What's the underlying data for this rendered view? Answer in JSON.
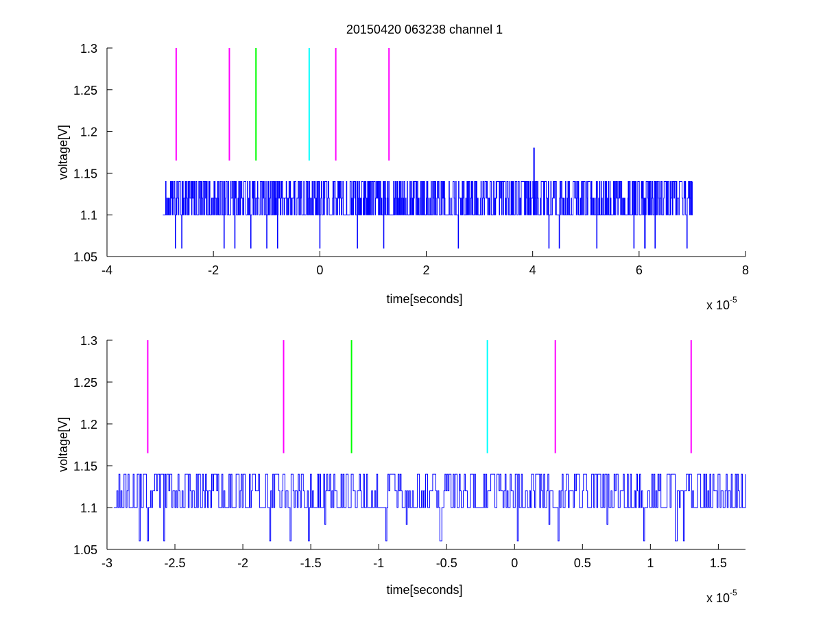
{
  "figure": {
    "title": "20150420 063238 channel 1"
  },
  "chart_data": [
    {
      "type": "line",
      "title": "20150420 063238 channel 1",
      "xlabel": "time[seconds]",
      "ylabel": "voltage[V]",
      "x_multiplier": "x 10",
      "x_exponent": "-5",
      "xlim": [
        -4,
        8
      ],
      "ylim": [
        1.05,
        1.3
      ],
      "xticks": [
        -4,
        -2,
        0,
        2,
        4,
        6,
        8
      ],
      "xtick_labels": [
        "-4",
        "-2",
        "0",
        "2",
        "4",
        "6",
        "8"
      ],
      "yticks": [
        1.05,
        1.1,
        1.15,
        1.2,
        1.25,
        1.3
      ],
      "ytick_labels": [
        "1.05",
        "1.1",
        "1.15",
        "1.2",
        "1.25",
        "1.3"
      ],
      "grid": false,
      "markers": [
        {
          "x": -2.7,
          "y_range": [
            1.165,
            1.3
          ],
          "color": "#ff00ff"
        },
        {
          "x": -1.7,
          "y_range": [
            1.165,
            1.3
          ],
          "color": "#ff00ff"
        },
        {
          "x": -1.2,
          "y_range": [
            1.165,
            1.3
          ],
          "color": "#00ff00"
        },
        {
          "x": -0.2,
          "y_range": [
            1.165,
            1.3
          ],
          "color": "#00ffff"
        },
        {
          "x": 0.3,
          "y_range": [
            1.165,
            1.3
          ],
          "color": "#ff00ff"
        },
        {
          "x": 1.3,
          "y_range": [
            1.165,
            1.3
          ],
          "color": "#ff00ff"
        }
      ],
      "signal": {
        "color": "#0000ff",
        "x_range": [
          -2.95,
          7.0
        ],
        "levels": [
          1.06,
          1.08,
          1.1,
          1.12,
          1.14
        ],
        "spike": {
          "x": 4.02,
          "y": 1.18
        },
        "dips": [
          {
            "x": -2.72,
            "y": 1.06
          },
          {
            "x": -2.6,
            "y": 1.06
          },
          {
            "x": -1.8,
            "y": 1.06
          },
          {
            "x": -1.6,
            "y": 1.06
          },
          {
            "x": -1.3,
            "y": 1.06
          },
          {
            "x": -1.0,
            "y": 1.06
          },
          {
            "x": -0.8,
            "y": 1.06
          },
          {
            "x": 0.0,
            "y": 1.06
          },
          {
            "x": 0.7,
            "y": 1.06
          },
          {
            "x": 1.2,
            "y": 1.06
          },
          {
            "x": 2.6,
            "y": 1.06
          },
          {
            "x": 4.3,
            "y": 1.06
          },
          {
            "x": 4.5,
            "y": 1.06
          },
          {
            "x": 5.2,
            "y": 1.06
          },
          {
            "x": 5.9,
            "y": 1.06
          },
          {
            "x": 6.1,
            "y": 1.06
          },
          {
            "x": 6.3,
            "y": 1.06
          },
          {
            "x": 6.9,
            "y": 1.06
          }
        ]
      }
    },
    {
      "type": "line",
      "title": "",
      "xlabel": "time[seconds]",
      "ylabel": "voltage[V]",
      "x_multiplier": "x 10",
      "x_exponent": "-5",
      "xlim": [
        -3.0,
        1.7
      ],
      "ylim": [
        1.05,
        1.3
      ],
      "xticks": [
        -3,
        -2.5,
        -2,
        -1.5,
        -1,
        -0.5,
        0,
        0.5,
        1,
        1.5
      ],
      "xtick_labels": [
        "-3",
        "-2.5",
        "-2",
        "-1.5",
        "-1",
        "-0.5",
        "0",
        "0.5",
        "1",
        "1.5"
      ],
      "yticks": [
        1.05,
        1.1,
        1.15,
        1.2,
        1.25,
        1.3
      ],
      "ytick_labels": [
        "1.05",
        "1.1",
        "1.15",
        "1.2",
        "1.25",
        "1.3"
      ],
      "grid": false,
      "markers": [
        {
          "x": -2.7,
          "y_range": [
            1.165,
            1.3
          ],
          "color": "#ff00ff"
        },
        {
          "x": -1.7,
          "y_range": [
            1.165,
            1.3
          ],
          "color": "#ff00ff"
        },
        {
          "x": -1.2,
          "y_range": [
            1.165,
            1.3
          ],
          "color": "#00ff00"
        },
        {
          "x": -0.2,
          "y_range": [
            1.165,
            1.3
          ],
          "color": "#00ffff"
        },
        {
          "x": 0.3,
          "y_range": [
            1.165,
            1.3
          ],
          "color": "#ff00ff"
        },
        {
          "x": 1.3,
          "y_range": [
            1.165,
            1.3
          ],
          "color": "#ff00ff"
        }
      ],
      "signal": {
        "color": "#0000ff",
        "x_range": [
          -2.95,
          1.7
        ],
        "levels": [
          1.06,
          1.08,
          1.1,
          1.12,
          1.14
        ],
        "dips": [
          {
            "x": -2.76,
            "y": 1.06
          },
          {
            "x": -2.7,
            "y": 1.06
          },
          {
            "x": -2.58,
            "y": 1.06
          },
          {
            "x": -1.8,
            "y": 1.06
          },
          {
            "x": -1.65,
            "y": 1.06
          },
          {
            "x": -1.52,
            "y": 1.06
          },
          {
            "x": -1.4,
            "y": 1.08
          },
          {
            "x": -0.95,
            "y": 1.06
          },
          {
            "x": -0.8,
            "y": 1.08
          },
          {
            "x": -0.55,
            "y": 1.06
          },
          {
            "x": 0.02,
            "y": 1.06
          },
          {
            "x": 0.25,
            "y": 1.08
          },
          {
            "x": 0.32,
            "y": 1.06
          },
          {
            "x": 0.68,
            "y": 1.08
          },
          {
            "x": 0.95,
            "y": 1.06
          },
          {
            "x": 1.18,
            "y": 1.06
          },
          {
            "x": 1.24,
            "y": 1.06
          }
        ]
      }
    }
  ]
}
